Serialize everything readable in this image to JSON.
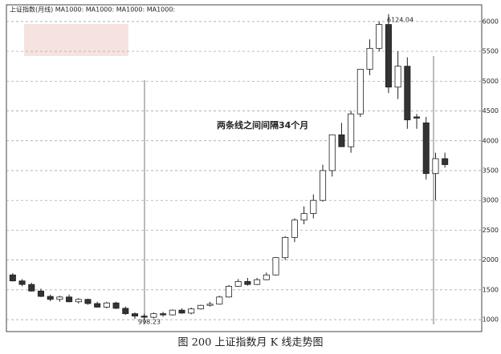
{
  "chart_data": {
    "type": "candlestick",
    "title": "上证指数(月线) MA1000: MA1000: MA1000: MA1000:",
    "caption": "图 200  上证指数月 K 线走势图",
    "annotations": [
      "两条线之间间隔34个月",
      "6124.04",
      "998.23"
    ],
    "open": [
      1750,
      1650,
      1590,
      1480,
      1390,
      1340,
      1380,
      1300,
      1340,
      1270,
      1210,
      1280,
      1190,
      1100,
      1060,
      1040,
      1100,
      1080,
      1160,
      1110,
      1180,
      1240,
      1260,
      1380,
      1560,
      1640,
      1590,
      1670,
      1750,
      2040,
      2380,
      2670,
      2780,
      3000,
      3500,
      4100,
      3900,
      4450,
      5200,
      5550,
      5950,
      4900,
      5250,
      4400,
      4300,
      3450,
      3700
    ],
    "high": [
      1780,
      1680,
      1620,
      1520,
      1420,
      1400,
      1420,
      1360,
      1350,
      1300,
      1300,
      1300,
      1220,
      1120,
      1100,
      1120,
      1130,
      1170,
      1190,
      1200,
      1250,
      1300,
      1400,
      1580,
      1680,
      1700,
      1700,
      1790,
      2050,
      2400,
      2700,
      2900,
      3100,
      3600,
      4100,
      4300,
      4500,
      5200,
      5700,
      6000,
      6124.04,
      5500,
      5400,
      4450,
      4400,
      3800,
      3800
    ],
    "low": [
      1640,
      1560,
      1470,
      1380,
      1310,
      1300,
      1290,
      1270,
      1250,
      1200,
      1190,
      1180,
      1080,
      1010,
      998.23,
      1020,
      1050,
      1070,
      1100,
      1090,
      1170,
      1220,
      1250,
      1370,
      1550,
      1570,
      1580,
      1660,
      1740,
      2000,
      2300,
      2600,
      2700,
      2980,
      3400,
      3950,
      3800,
      4400,
      5100,
      5500,
      4800,
      4700,
      4200,
      4200,
      3350,
      3000,
      3550
    ],
    "close": [
      1650,
      1590,
      1480,
      1390,
      1340,
      1380,
      1300,
      1340,
      1270,
      1210,
      1280,
      1190,
      1100,
      1060,
      1040,
      1100,
      1080,
      1160,
      1110,
      1180,
      1240,
      1260,
      1380,
      1560,
      1640,
      1590,
      1670,
      1750,
      2040,
      2380,
      2670,
      2780,
      3000,
      3500,
      4100,
      3900,
      4450,
      5200,
      5550,
      5950,
      4900,
      5250,
      4350,
      4380,
      3450,
      3700,
      3600
    ],
    "up_color": "#ffffff",
    "down_color": "#333333",
    "ylim": [
      800,
      6280
    ],
    "yticks": [
      1000,
      1500,
      2000,
      2500,
      3000,
      3500,
      4000,
      4500,
      5000,
      5500,
      6000
    ],
    "grid": true
  }
}
